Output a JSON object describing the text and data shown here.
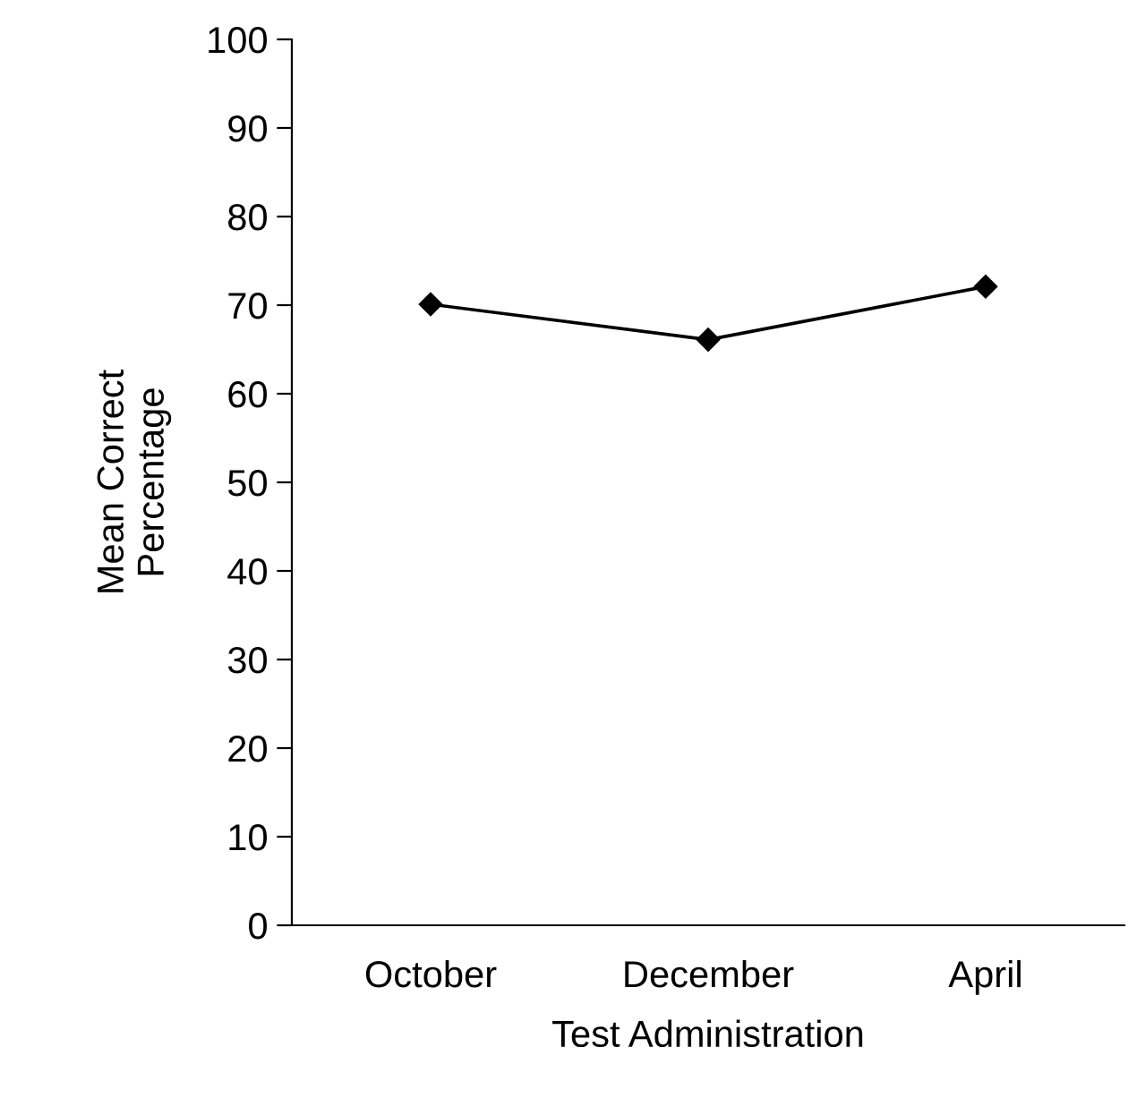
{
  "chart_data": {
    "type": "line",
    "xlabel": "Test Administration",
    "ylabel": "Mean Correct\nPercentage",
    "categories": [
      "October",
      "December",
      "April"
    ],
    "series": [
      {
        "color": "#000000",
        "values": [
          70.1,
          66.1,
          72.1
        ]
      }
    ],
    "ylim": [
      0,
      100
    ],
    "yticks": [
      0,
      10,
      20,
      30,
      40,
      50,
      60,
      70,
      80,
      90,
      100
    ],
    "marker": "diamond",
    "line_style": "solid",
    "grid": false,
    "legend": false
  }
}
